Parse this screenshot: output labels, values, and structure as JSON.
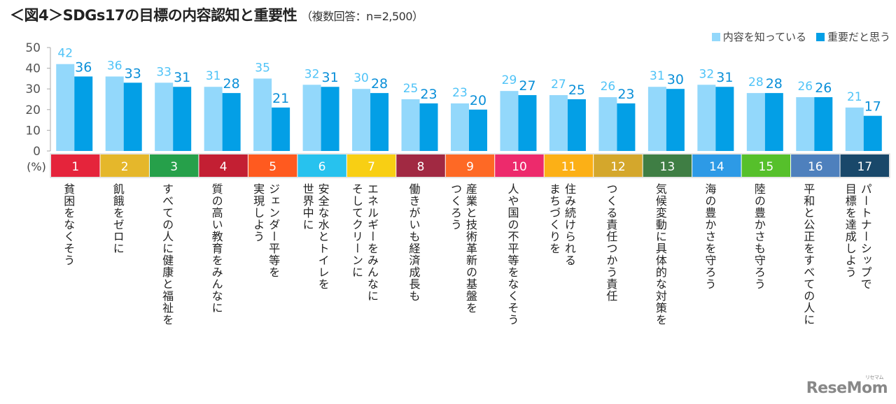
{
  "title": "＜図4＞SDGs17の目標の内容認知と重要性",
  "subtitle": "（複数回答：n=2,500）",
  "logo": {
    "text": "ReseMom",
    "ruby": "リセマム"
  },
  "colors": {
    "know": "#93d8fb",
    "important": "#039fe6",
    "know_label": "#4fc3f7",
    "important_label": "#0a8fd8",
    "axis": "#aaaaaa"
  },
  "chart_data": {
    "type": "bar",
    "title": "＜図4＞SDGs17の目標の内容認知と重要性",
    "subtitle": "（複数回答：n=2,500）",
    "xlabel": "",
    "ylabel": "(%)",
    "ylim": [
      0,
      50
    ],
    "yticks": [
      0,
      10,
      20,
      30,
      40,
      50
    ],
    "grid": false,
    "legend_position": "top-right",
    "categories": [
      "1",
      "2",
      "3",
      "4",
      "5",
      "6",
      "7",
      "8",
      "9",
      "10",
      "11",
      "12",
      "13",
      "14",
      "15",
      "16",
      "17"
    ],
    "category_colors": [
      "#e5243b",
      "#e5b72b",
      "#26a04a",
      "#c31f33",
      "#ff5a1f",
      "#27c2ee",
      "#f8cf14",
      "#a12942",
      "#fe6925",
      "#ed2a6c",
      "#fcb016",
      "#d4a72c",
      "#3f7e44",
      "#2d9ae6",
      "#56c02b",
      "#4e80bd",
      "#19486a"
    ],
    "goal_labels": [
      "貧困をなくそう",
      "飢餓をゼロに",
      "すべての人に健康と福祉を",
      "質の高い教育をみんなに",
      "ジェンダー平等を\n実現しよう",
      "安全な水とトイレを\n世界中に",
      "エネルギーをみんなに\nそしてクリーンに",
      "働きがいも経済成長も",
      "産業と技術革新の基盤を\nつくろう",
      "人や国の不平等をなくそう",
      "住み続けられる\nまちづくりを",
      "つくる責任つかう責任",
      "気候変動に具体的な対策を",
      "海の豊かさを守ろう",
      "陸の豊かさも守ろう",
      "平和と公正をすべての人に",
      "パートナーシップで\n目標を達成しよう"
    ],
    "series": [
      {
        "name": "内容を知っている",
        "values": [
          42,
          36,
          33,
          31,
          35,
          32,
          30,
          25,
          23,
          29,
          27,
          26,
          31,
          32,
          28,
          26,
          21
        ]
      },
      {
        "name": "重要だと思う",
        "values": [
          36,
          33,
          31,
          28,
          21,
          31,
          28,
          23,
          20,
          27,
          25,
          23,
          30,
          31,
          28,
          26,
          17
        ]
      }
    ]
  }
}
